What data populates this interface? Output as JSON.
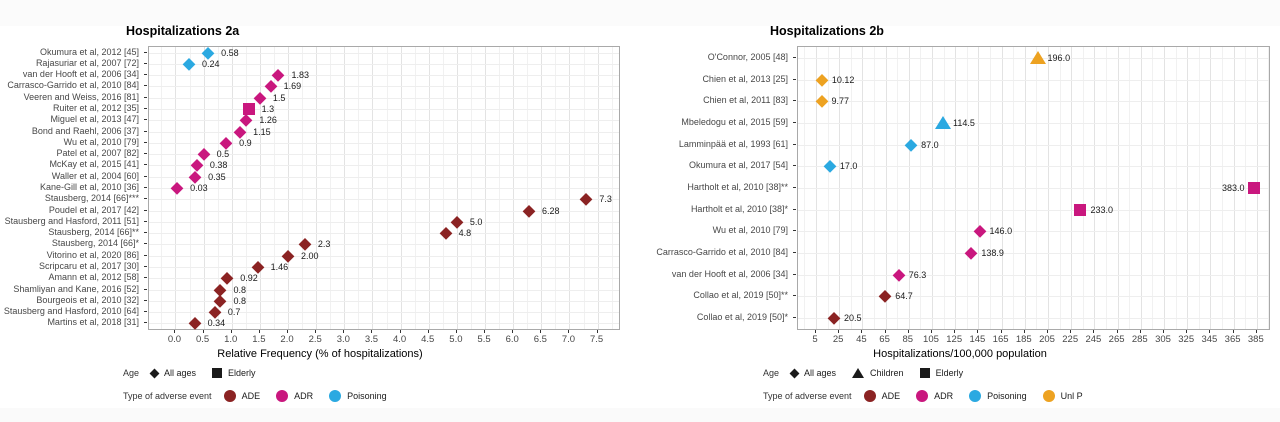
{
  "page": {
    "background": "#ffffff",
    "top_band_color": "#fbfbfb",
    "bottom_band_color": "#fafafa"
  },
  "colors": {
    "ADE": "#8B2323",
    "ADR": "#C9177E",
    "Poisoning": "#2BA9E1",
    "UnlP": "#EDA221",
    "age_key": "#1a1a1a"
  },
  "chart_data": [
    {
      "type": "scatter",
      "title": "Hospitalizations 2a",
      "xlabel": "Relative Frequency (% of hospitalizations)",
      "x_ticks": [
        "0.0",
        "0.5",
        "1.0",
        "1.5",
        "2.0",
        "2.5",
        "3.0",
        "3.5",
        "4.0",
        "4.5",
        "5.0",
        "5.5",
        "6.0",
        "6.5",
        "7.0",
        "7.5"
      ],
      "xlim": [
        -0.47,
        7.88
      ],
      "x_minor_step": 0.25,
      "grid": true,
      "legend": {
        "age_title": "Age",
        "age_items": [
          {
            "label": "All ages",
            "shape": "diamond"
          },
          {
            "label": "Elderly",
            "shape": "square"
          }
        ],
        "type_title": "Type of adverse event",
        "type_items": [
          {
            "label": "ADE",
            "color": "#8B2323"
          },
          {
            "label": "ADR",
            "color": "#C9177E"
          },
          {
            "label": "Poisoning",
            "color": "#2BA9E1"
          }
        ]
      },
      "points": [
        {
          "study": "Okumura et al, 2012 [45]",
          "value": 0.58,
          "label": "0.58",
          "shape": "diamond",
          "event": "Poisoning"
        },
        {
          "study": "Rajasuriar et al, 2007 [72]",
          "value": 0.24,
          "label": "0.24",
          "shape": "diamond",
          "event": "Poisoning"
        },
        {
          "study": "van der Hooft et al, 2006 [34]",
          "value": 1.83,
          "label": "1.83",
          "shape": "diamond",
          "event": "ADR"
        },
        {
          "study": "Carrasco-Garrido et al, 2010 [84]",
          "value": 1.69,
          "label": "1.69",
          "shape": "diamond",
          "event": "ADR"
        },
        {
          "study": "Veeren and Weiss, 2016 [81]",
          "value": 1.5,
          "label": "1.5",
          "shape": "diamond",
          "event": "ADR"
        },
        {
          "study": "Ruiter et al, 2012 [35]",
          "value": 1.3,
          "label": "1.3",
          "shape": "square",
          "event": "ADR"
        },
        {
          "study": "Miguel et al, 2013 [47]",
          "value": 1.26,
          "label": "1.26",
          "shape": "diamond",
          "event": "ADR"
        },
        {
          "study": "Bond and Raehl, 2006 [37]",
          "value": 1.15,
          "label": "1.15",
          "shape": "diamond",
          "event": "ADR"
        },
        {
          "study": "Wu et al, 2010 [79]",
          "value": 0.9,
          "label": "0.9",
          "shape": "diamond",
          "event": "ADR"
        },
        {
          "study": "Patel et al, 2007 [82]",
          "value": 0.5,
          "label": "0.5",
          "shape": "diamond",
          "event": "ADR"
        },
        {
          "study": "McKay et al, 2015 [41]",
          "value": 0.38,
          "label": "0.38",
          "shape": "diamond",
          "event": "ADR"
        },
        {
          "study": "Waller et al, 2004 [60]",
          "value": 0.35,
          "label": "0.35",
          "shape": "diamond",
          "event": "ADR"
        },
        {
          "study": "Kane-Gill et al, 2010 [36]",
          "value": 0.03,
          "label": "0.03",
          "shape": "diamond",
          "event": "ADR"
        },
        {
          "study": "Stausberg, 2014 [66]***",
          "value": 7.3,
          "label": "7.3",
          "shape": "diamond",
          "event": "ADE"
        },
        {
          "study": "Poudel et al, 2017 [42]",
          "value": 6.28,
          "label": "6.28",
          "shape": "diamond",
          "event": "ADE"
        },
        {
          "study": "Stausberg and Hasford, 2011 [51]",
          "value": 5.0,
          "label": "5.0",
          "shape": "diamond",
          "event": "ADE"
        },
        {
          "study": "Stausberg, 2014 [66]**",
          "value": 4.8,
          "label": "4.8",
          "shape": "diamond",
          "event": "ADE"
        },
        {
          "study": "Stausberg, 2014 [66]*",
          "value": 2.3,
          "label": "2.3",
          "shape": "diamond",
          "event": "ADE"
        },
        {
          "study": "Vitorino et al, 2020 [86]",
          "value": 2.0,
          "label": "2.00",
          "shape": "diamond",
          "event": "ADE"
        },
        {
          "study": "Scripcaru et al, 2017 [30]",
          "value": 1.46,
          "label": "1.46",
          "shape": "diamond",
          "event": "ADE"
        },
        {
          "study": "Amann et al, 2012 [58]",
          "value": 0.92,
          "label": "0.92",
          "shape": "diamond",
          "event": "ADE"
        },
        {
          "study": "Shamliyan and Kane, 2016 [52]",
          "value": 0.8,
          "label": "0.8",
          "shape": "diamond",
          "event": "ADE"
        },
        {
          "study": "Bourgeois et al, 2010 [32]",
          "value": 0.8,
          "label": "0.8",
          "shape": "diamond",
          "event": "ADE"
        },
        {
          "study": "Stausberg and Hasford, 2010 [64]",
          "value": 0.7,
          "label": "0.7",
          "shape": "diamond",
          "event": "ADE"
        },
        {
          "study": "Martins et al, 2018 [31]",
          "value": 0.34,
          "label": "0.34",
          "shape": "diamond",
          "event": "ADE"
        }
      ]
    },
    {
      "type": "scatter",
      "title": "Hospitalizations 2b",
      "xlabel": "Hospitalizations/100,000 population",
      "x_ticks": [
        "5",
        "25",
        "45",
        "65",
        "85",
        "105",
        "125",
        "145",
        "165",
        "185",
        "205",
        "225",
        "245",
        "265",
        "285",
        "305",
        "325",
        "345",
        "365",
        "385"
      ],
      "xlim": [
        -10.5,
        395.5
      ],
      "x_minor_step": 10,
      "grid": true,
      "legend": {
        "age_title": "Age",
        "age_items": [
          {
            "label": "All ages",
            "shape": "diamond"
          },
          {
            "label": "Children",
            "shape": "triangle"
          },
          {
            "label": "Elderly",
            "shape": "square"
          }
        ],
        "type_title": "Type of adverse event",
        "type_items": [
          {
            "label": "ADE",
            "color": "#8B2323"
          },
          {
            "label": "ADR",
            "color": "#C9177E"
          },
          {
            "label": "Poisoning",
            "color": "#2BA9E1"
          },
          {
            "label": "Unl P",
            "color": "#EDA221"
          }
        ]
      },
      "points": [
        {
          "study": "O'Connor, 2005 [48]",
          "value": 196.0,
          "label": "196.0",
          "shape": "triangle",
          "event": "UnlP"
        },
        {
          "study": "Chien et al, 2013 [25]",
          "value": 10.12,
          "label": "10.12",
          "shape": "diamond",
          "event": "UnlP"
        },
        {
          "study": "Chien et al, 2011 [83]",
          "value": 9.77,
          "label": "9.77",
          "shape": "diamond",
          "event": "UnlP"
        },
        {
          "study": "Mbeledogu et al, 2015 [59]",
          "value": 114.5,
          "label": "114.5",
          "shape": "triangle",
          "event": "Poisoning"
        },
        {
          "study": "Lamminpää et al, 1993 [61]",
          "value": 87.0,
          "label": "87.0",
          "shape": "diamond",
          "event": "Poisoning"
        },
        {
          "study": "Okumura et al, 2017 [54]",
          "value": 17.0,
          "label": "17.0",
          "shape": "diamond",
          "event": "Poisoning"
        },
        {
          "study": "Hartholt et al, 2010 [38]**",
          "value": 383.0,
          "label": "383.0",
          "shape": "square",
          "event": "ADR",
          "label_side": "left"
        },
        {
          "study": "Hartholt et al, 2010 [38]*",
          "value": 233.0,
          "label": "233.0",
          "shape": "square",
          "event": "ADR"
        },
        {
          "study": "Wu et al, 2010 [79]",
          "value": 146.0,
          "label": "146.0",
          "shape": "diamond",
          "event": "ADR"
        },
        {
          "study": "Carrasco-Garrido et al, 2010 [84]",
          "value": 138.9,
          "label": "138.9",
          "shape": "diamond",
          "event": "ADR"
        },
        {
          "study": "van der Hooft et al, 2006 [34]",
          "value": 76.3,
          "label": "76.3",
          "shape": "diamond",
          "event": "ADR"
        },
        {
          "study": "Collao et al, 2019 [50]**",
          "value": 64.7,
          "label": "64.7",
          "shape": "diamond",
          "event": "ADE"
        },
        {
          "study": "Collao et al, 2019 [50]*",
          "value": 20.5,
          "label": "20.5",
          "shape": "diamond",
          "event": "ADE"
        }
      ]
    }
  ]
}
